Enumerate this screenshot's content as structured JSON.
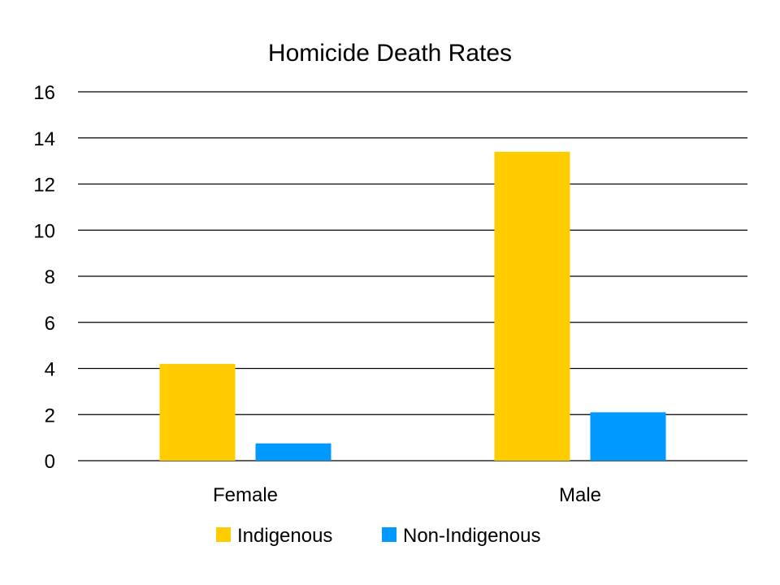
{
  "chart_data": {
    "type": "bar",
    "title": "Homicide Death Rates",
    "categories": [
      "Female",
      "Male"
    ],
    "series": [
      {
        "name": "Indigenous",
        "color": "#FFCC00",
        "values": [
          4.2,
          13.4
        ]
      },
      {
        "name": "Non-Indigenous",
        "color": "#0099FF",
        "values": [
          0.75,
          2.1
        ]
      }
    ],
    "ylim": [
      0,
      16
    ],
    "yticks": [
      0,
      2,
      4,
      6,
      8,
      10,
      12,
      14,
      16
    ],
    "grid": true,
    "legend": "bottom"
  }
}
